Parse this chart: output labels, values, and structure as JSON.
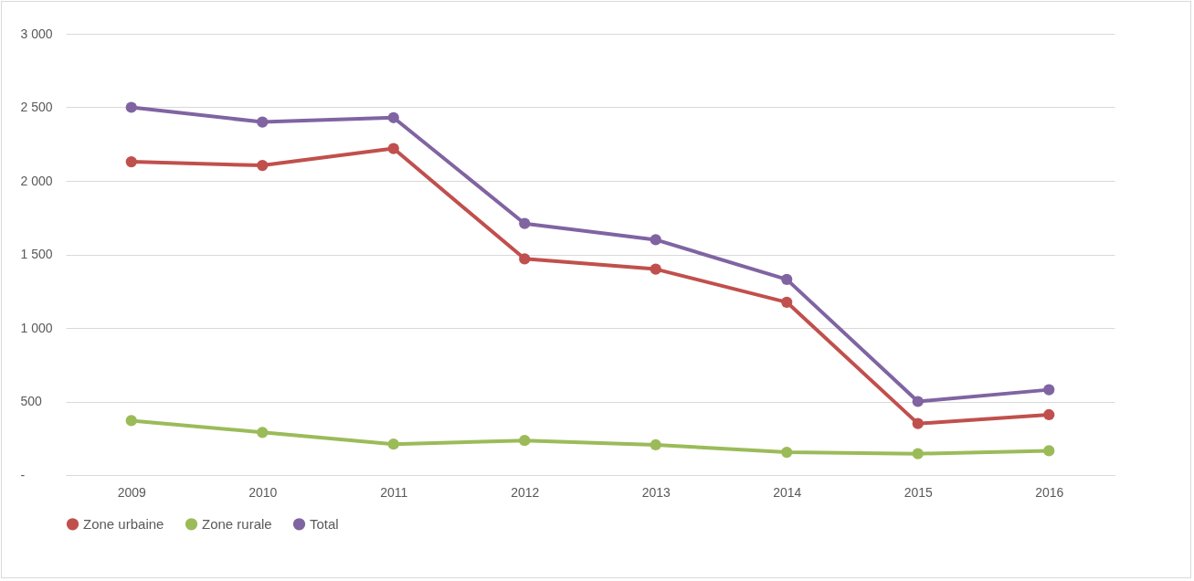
{
  "chart_data": {
    "type": "line",
    "categories": [
      "2009",
      "2010",
      "2011",
      "2012",
      "2013",
      "2014",
      "2015",
      "2016"
    ],
    "series": [
      {
        "name": "Zone urbaine",
        "color": "#c0504d",
        "values": [
          2130,
          2105,
          2220,
          1470,
          1400,
          1175,
          350,
          410
        ]
      },
      {
        "name": "Zone rurale",
        "color": "#9bbb59",
        "values": [
          370,
          290,
          210,
          235,
          205,
          155,
          145,
          165
        ]
      },
      {
        "name": "Total",
        "color": "#8064a2",
        "values": [
          2500,
          2400,
          2430,
          1710,
          1600,
          1330,
          500,
          580
        ]
      }
    ],
    "ylim": [
      0,
      3000
    ],
    "yticks": [
      {
        "value": 0,
        "label": "-"
      },
      500,
      {
        "value": 1000,
        "label": "1 000"
      },
      {
        "value": 1500,
        "label": "1 500"
      },
      {
        "value": 2000,
        "label": "2 000"
      },
      {
        "value": 2500,
        "label": "2 500"
      },
      {
        "value": 3000,
        "label": "3 000"
      }
    ],
    "grid": "y",
    "legend": "bottom",
    "marker": "circle",
    "line_style": "solid"
  }
}
